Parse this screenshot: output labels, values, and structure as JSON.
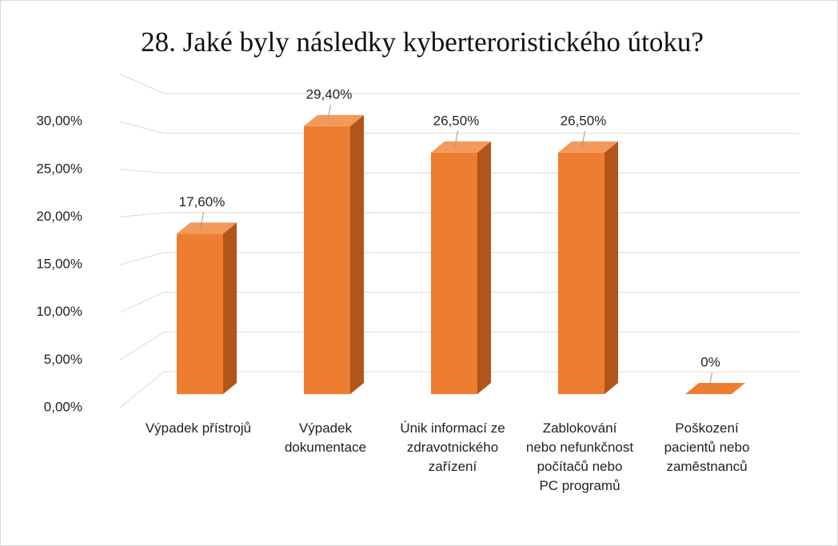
{
  "chart_data": {
    "type": "bar3d",
    "title": "28. Jaké byly následky kyberteroristického útoku?",
    "categories": [
      "Výpadek přístrojů",
      "Výpadek dokumentace",
      "Únik informací ze zdravotnického zařízení",
      "Zablokování nebo nefunkčnost počítačů nebo PC programů",
      "Poškození pacientů nebo zaměstnanců"
    ],
    "values": [
      17.6,
      29.4,
      26.5,
      26.5,
      0
    ],
    "value_labels": [
      "17,60%",
      "29,40%",
      "26,50%",
      "26,50%",
      "0%"
    ],
    "color": "#ed7d31",
    "ylim": [
      0,
      35
    ],
    "yticks": [
      {
        "value": 0,
        "label": "0,00%"
      },
      {
        "value": 5,
        "label": "5,00%"
      },
      {
        "value": 10,
        "label": "10,00%"
      },
      {
        "value": 15,
        "label": "15,00%"
      },
      {
        "value": 20,
        "label": "20,00%"
      },
      {
        "value": 25,
        "label": "25,00%"
      },
      {
        "value": 30,
        "label": "30,00%"
      }
    ],
    "grid": true
  }
}
